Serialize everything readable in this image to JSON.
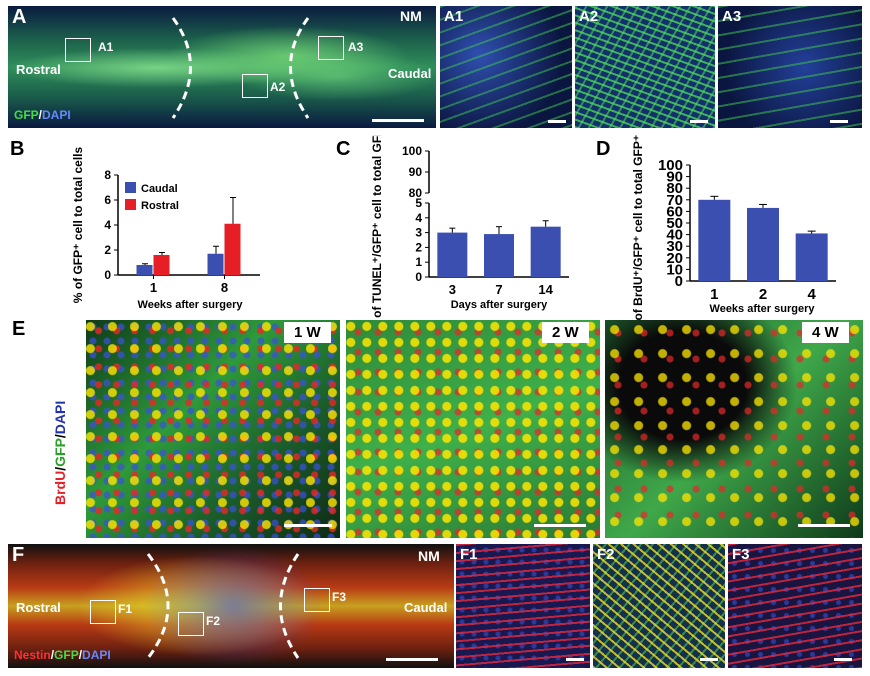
{
  "panels": {
    "A": {
      "letter": "A",
      "nm": "NM",
      "rostral": "Rostral",
      "caudal": "Caudal",
      "boxes": [
        "A1",
        "A2",
        "A3"
      ],
      "stain_a": "GFP",
      "stain_sep": "/",
      "stain_b": "DAPI",
      "insets": [
        "A1",
        "A2",
        "A3"
      ]
    },
    "E": {
      "letter": "E",
      "weeks": [
        "1 W",
        "2 W",
        "4 W"
      ],
      "stain_a": "BrdU",
      "stain_sep1": "/",
      "stain_b": "GFP",
      "stain_sep2": "/",
      "stain_c": "DAPI"
    },
    "F": {
      "letter": "F",
      "nm": "NM",
      "rostral": "Rostral",
      "caudal": "Caudal",
      "boxes": [
        "F1",
        "F2",
        "F3"
      ],
      "stain_a": "Nestin",
      "stain_sep1": "/",
      "stain_b": "GFP",
      "stain_sep2": "/",
      "stain_c": "DAPI",
      "insets": [
        "F1",
        "F2",
        "F3"
      ]
    }
  },
  "colors": {
    "caudal": "#3a4fb0",
    "rostral": "#e61e25",
    "bar": "#3a4fb0"
  },
  "chart_data": [
    {
      "id": "B",
      "letter": "B",
      "type": "bar",
      "categories": [
        "1",
        "8"
      ],
      "series": [
        {
          "name": "Caudal",
          "values": [
            0.8,
            1.7
          ],
          "errors": [
            0.1,
            0.6
          ]
        },
        {
          "name": "Rostral",
          "values": [
            1.6,
            4.1
          ],
          "errors": [
            0.2,
            2.1
          ]
        }
      ],
      "ylim": [
        0,
        8
      ],
      "yticks": [
        "0",
        "2",
        "4",
        "6",
        "8"
      ],
      "xlabel": "Weeks after surgery",
      "ylabel": "% of GFP⁺ cell to total cells",
      "legend": "top-left"
    },
    {
      "id": "C",
      "letter": "C",
      "type": "bar",
      "categories": [
        "3",
        "7",
        "14"
      ],
      "values": [
        3.0,
        2.9,
        3.4
      ],
      "errors": [
        0.3,
        0.5,
        0.4
      ],
      "ylim": [
        0,
        100
      ],
      "axis_break": [
        5,
        80
      ],
      "yticks": [
        "0",
        "1",
        "2",
        "3",
        "4",
        "5",
        "80",
        "90",
        "100"
      ],
      "xlabel": "Days after surgery",
      "ylabel": "% of TUNEL⁺/GFP⁺ cell to total GFP⁺ cell"
    },
    {
      "id": "D",
      "letter": "D",
      "type": "bar",
      "categories": [
        "1",
        "2",
        "4"
      ],
      "values": [
        70,
        63,
        41
      ],
      "errors": [
        3,
        3,
        2
      ],
      "ylim": [
        0,
        100
      ],
      "yticks": [
        "0",
        "10",
        "20",
        "30",
        "40",
        "50",
        "60",
        "70",
        "80",
        "90",
        "100"
      ],
      "xlabel": "Weeks after surgery",
      "ylabel": "% of BrdU⁺/GFP⁺ cell to total GFP⁺ cell"
    }
  ]
}
